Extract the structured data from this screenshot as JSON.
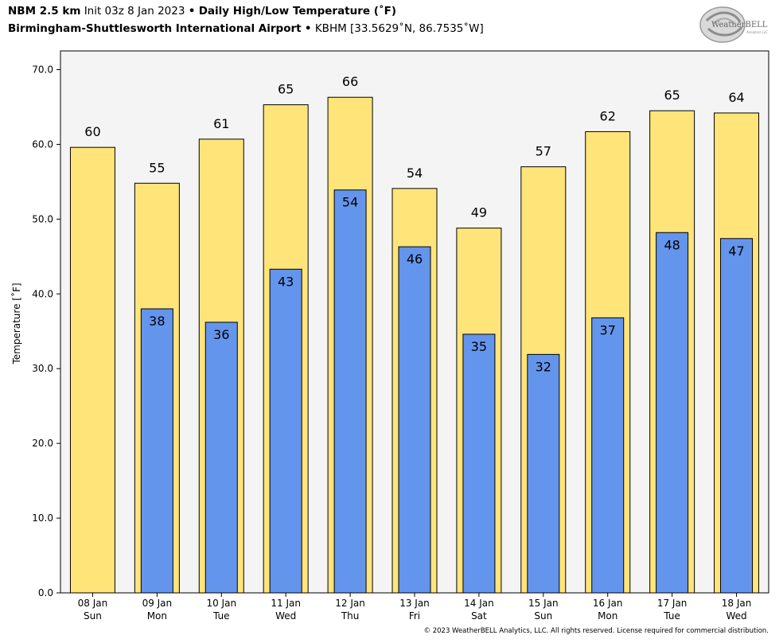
{
  "header": {
    "model": "NBM 2.5 km",
    "init": "Init 03z 8 Jan 2023",
    "sep": "•",
    "product": "Daily High/Low Temperature (˚F)",
    "station": "Birmingham-Shuttlesworth International Airport",
    "station_sep": "•",
    "station_code": "KBHM [33.5629˚N, 86.7535˚W]"
  },
  "logo": {
    "text": "WeatherBELL",
    "subtext": "Analytics LLC"
  },
  "copyright": "© 2023 WeatherBELL Analytics, LLC. All rights reserved. License required for commercial distribution.",
  "colors": {
    "high": "#ffe47a",
    "low": "#6495ed",
    "plot_bg": "#f4f4f4",
    "edge": "#000000"
  },
  "chart_data": {
    "type": "bar",
    "title": "Daily High/Low Temperature (˚F)",
    "ylabel": "Temperature [˚F]",
    "ylim": [
      0,
      72.5
    ],
    "yticks": [
      "0.0",
      "10.0",
      "20.0",
      "30.0",
      "40.0",
      "50.0",
      "60.0",
      "70.0"
    ],
    "categories": [
      [
        "08 Jan",
        "Sun"
      ],
      [
        "09 Jan",
        "Mon"
      ],
      [
        "10 Jan",
        "Tue"
      ],
      [
        "11 Jan",
        "Wed"
      ],
      [
        "12 Jan",
        "Thu"
      ],
      [
        "13 Jan",
        "Fri"
      ],
      [
        "14 Jan",
        "Sat"
      ],
      [
        "15 Jan",
        "Sun"
      ],
      [
        "16 Jan",
        "Mon"
      ],
      [
        "17 Jan",
        "Tue"
      ],
      [
        "18 Jan",
        "Wed"
      ]
    ],
    "series": [
      {
        "key": "high",
        "values": [
          59.6,
          54.8,
          60.7,
          65.3,
          66.3,
          54.1,
          48.8,
          57.0,
          61.7,
          64.5,
          64.2
        ],
        "labels": [
          "60",
          "55",
          "61",
          "65",
          "66",
          "54",
          "49",
          "57",
          "62",
          "65",
          "64"
        ]
      },
      {
        "key": "low",
        "values": [
          null,
          38.0,
          36.2,
          43.3,
          53.9,
          46.3,
          34.6,
          31.9,
          36.8,
          48.2,
          47.4
        ],
        "labels": [
          "",
          "38",
          "36",
          "43",
          "54",
          "46",
          "35",
          "32",
          "37",
          "48",
          "47"
        ]
      }
    ],
    "grid": false,
    "legend": "none"
  }
}
